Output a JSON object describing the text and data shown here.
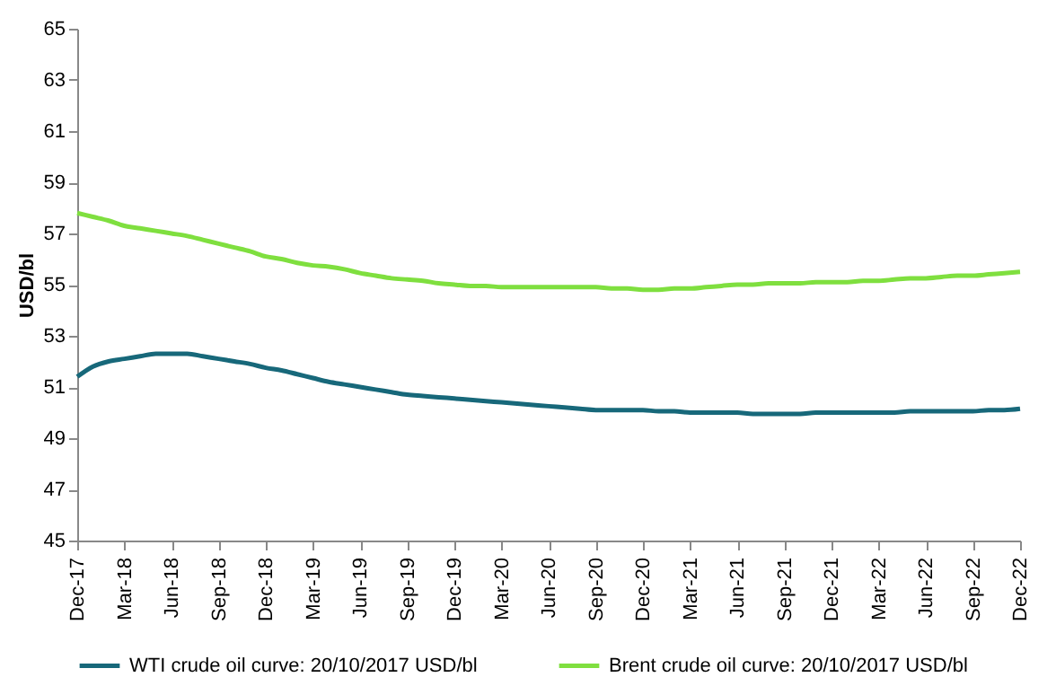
{
  "chart_data": {
    "type": "line",
    "ylabel": "USD/bl",
    "categories": [
      "Dec-17",
      null,
      null,
      "Mar-18",
      null,
      null,
      "Jun-18",
      null,
      null,
      "Sep-18",
      null,
      null,
      "Dec-18",
      null,
      null,
      "Mar-19",
      null,
      null,
      "Jun-19",
      null,
      null,
      "Sep-19",
      null,
      null,
      "Dec-19",
      null,
      null,
      "Mar-20",
      null,
      null,
      "Jun-20",
      null,
      null,
      "Sep-20",
      null,
      null,
      "Dec-20",
      null,
      null,
      "Mar-21",
      null,
      null,
      "Jun-21",
      null,
      null,
      "Sep-21",
      null,
      null,
      "Dec-21",
      null,
      null,
      "Mar-22",
      null,
      null,
      "Jun-22",
      null,
      null,
      "Sep-22",
      null,
      null,
      "Dec-22"
    ],
    "series": [
      {
        "name": "WTI crude oil curve: 20/10/2017 USD/bl",
        "color": "#17687a",
        "values": [
          51.4,
          51.8,
          52.0,
          52.1,
          52.2,
          52.3,
          52.3,
          52.3,
          52.2,
          52.1,
          52.0,
          51.9,
          51.75,
          51.65,
          51.5,
          51.35,
          51.2,
          51.1,
          51.0,
          50.9,
          50.8,
          50.7,
          50.65,
          50.6,
          50.55,
          50.5,
          50.45,
          50.4,
          50.35,
          50.3,
          50.25,
          50.2,
          50.15,
          50.1,
          50.1,
          50.1,
          50.1,
          50.05,
          50.05,
          50.0,
          50.0,
          50.0,
          50.0,
          49.95,
          49.95,
          49.95,
          49.95,
          50.0,
          50.0,
          50.0,
          50.0,
          50.0,
          50.0,
          50.05,
          50.05,
          50.05,
          50.05,
          50.05,
          50.1,
          50.1,
          50.15
        ]
      },
      {
        "name": "Brent crude oil curve: 20/10/2017 USD/bl",
        "color": "#7fdf3f",
        "values": [
          57.8,
          57.65,
          57.5,
          57.3,
          57.2,
          57.1,
          57.0,
          56.9,
          56.75,
          56.6,
          56.45,
          56.3,
          56.1,
          56.0,
          55.85,
          55.75,
          55.7,
          55.6,
          55.45,
          55.35,
          55.25,
          55.2,
          55.15,
          55.05,
          55.0,
          54.95,
          54.95,
          54.9,
          54.9,
          54.9,
          54.9,
          54.9,
          54.9,
          54.9,
          54.85,
          54.85,
          54.8,
          54.8,
          54.85,
          54.85,
          54.9,
          54.95,
          55.0,
          55.0,
          55.05,
          55.05,
          55.05,
          55.1,
          55.1,
          55.1,
          55.15,
          55.15,
          55.2,
          55.25,
          55.25,
          55.3,
          55.35,
          55.35,
          55.4,
          55.45,
          55.5
        ]
      }
    ],
    "ylim": [
      45,
      65
    ],
    "yticks": [
      45,
      47,
      49,
      51,
      53,
      55,
      57,
      59,
      61,
      63,
      65
    ],
    "grid": false,
    "legend": "bottom",
    "marker": "none",
    "line_style": "solid"
  }
}
